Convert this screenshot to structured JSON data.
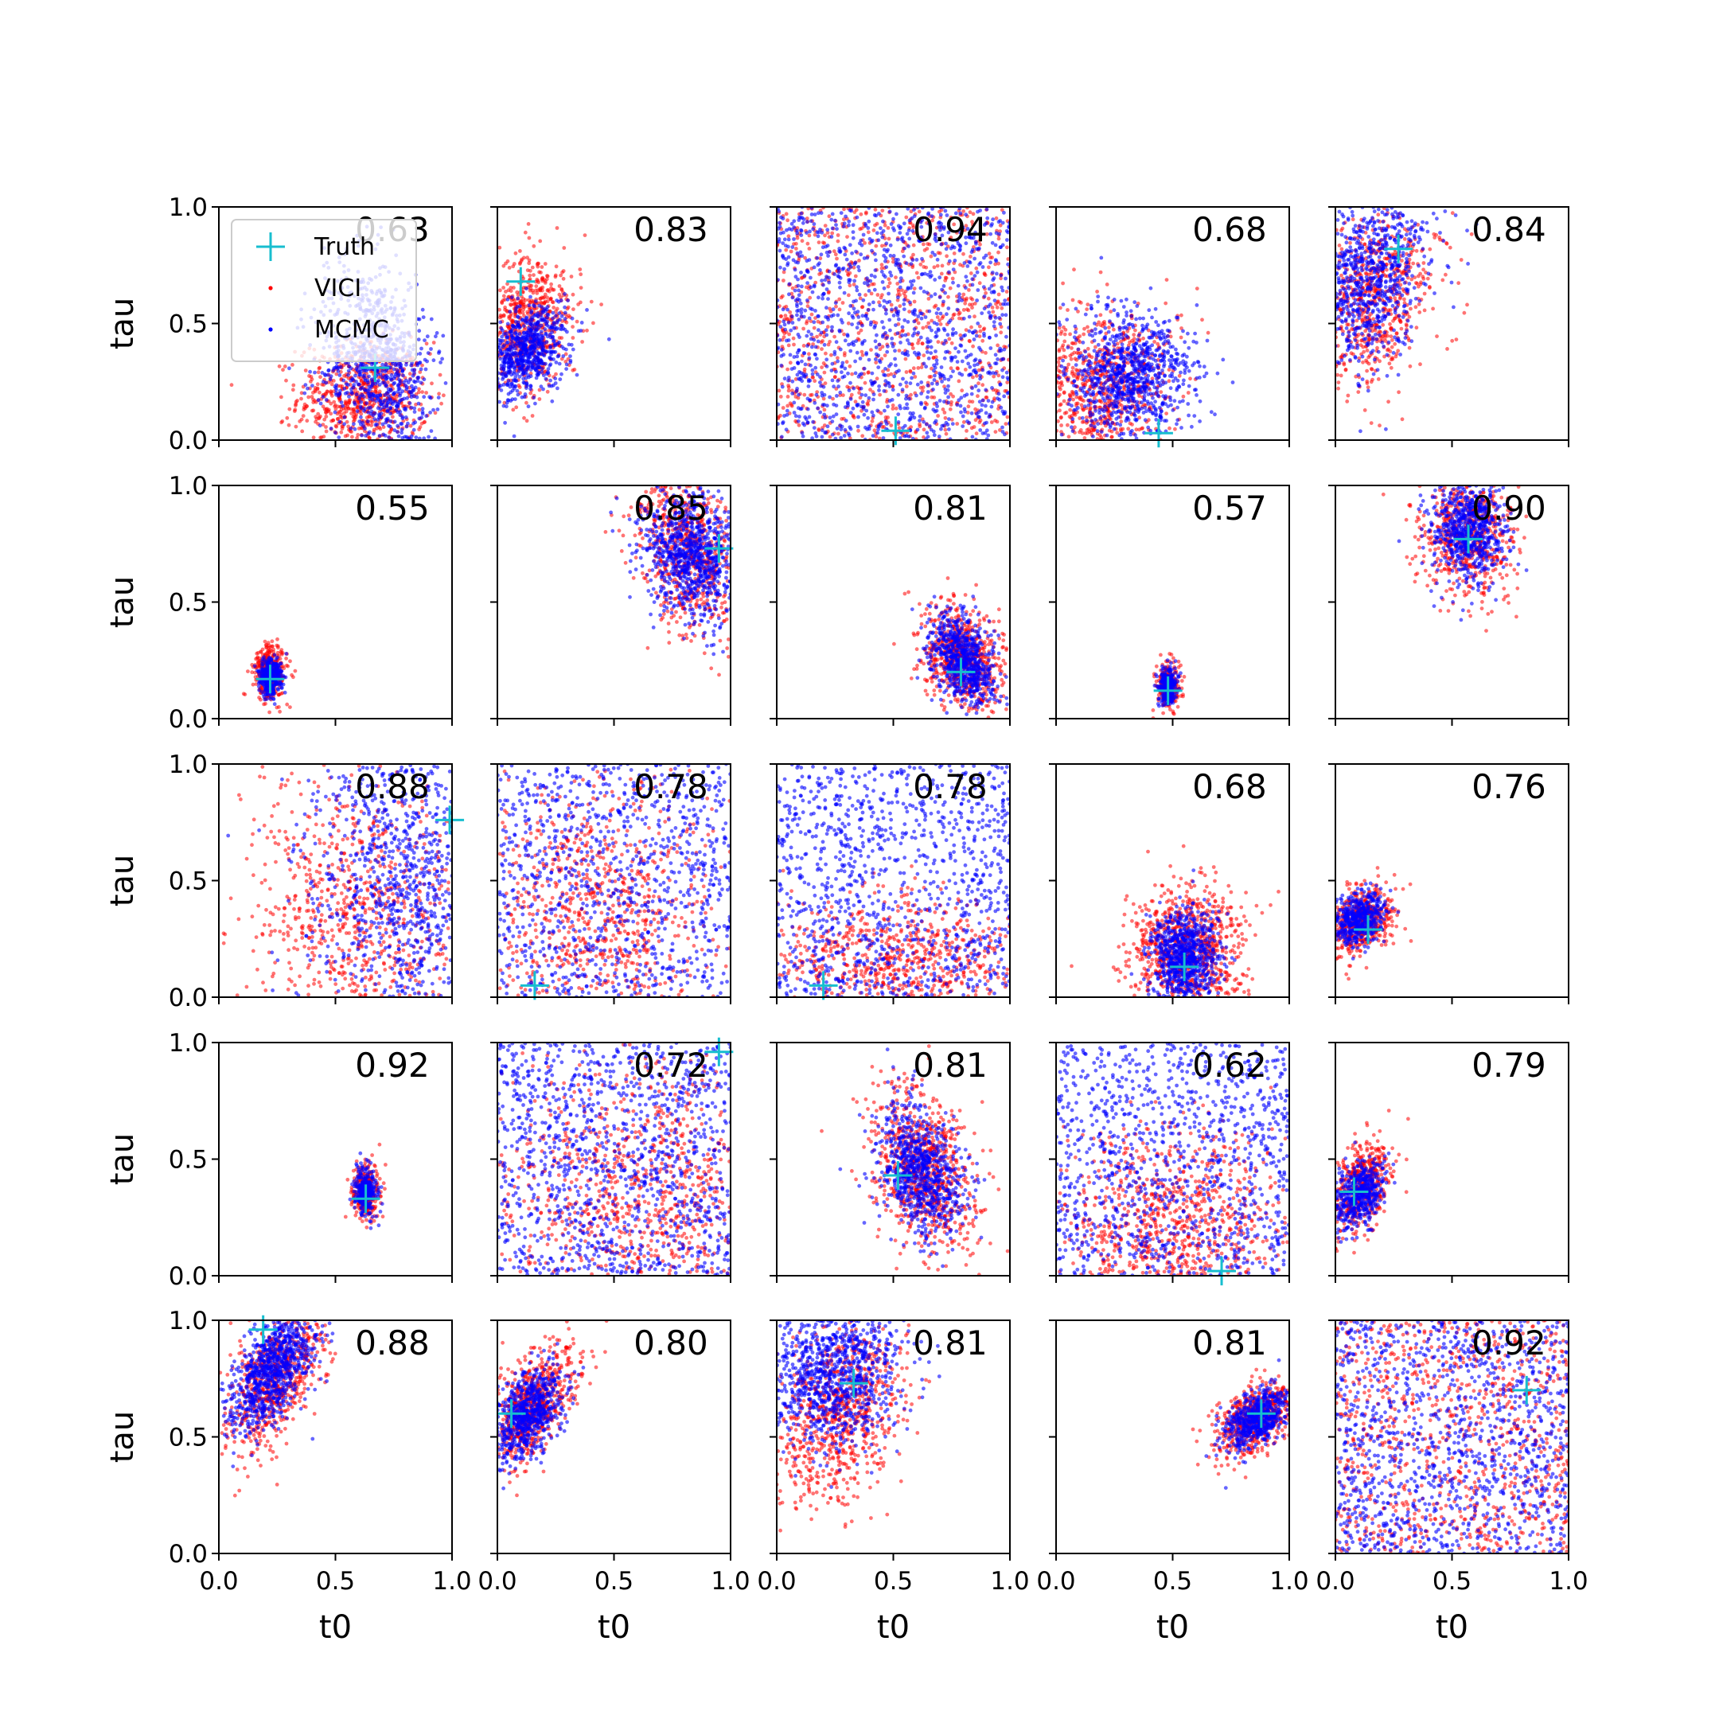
{
  "colors": {
    "vici": "#ff0000",
    "mcmc": "#0000ff",
    "truth": "#17becf",
    "axes": "#000000",
    "background": "#ffffff"
  },
  "legend": {
    "placement": "top-left of first panel",
    "entries": [
      {
        "label": "Truth",
        "marker": "plus",
        "color": "#17becf"
      },
      {
        "label": "VICI",
        "marker": "dot",
        "color": "#ff0000"
      },
      {
        "label": "MCMC",
        "marker": "dot",
        "color": "#0000ff"
      }
    ]
  },
  "chart_data": {
    "type": "scatter",
    "layout": "5x5 grid of scatter panels with shared axes",
    "xlabel": "t0",
    "ylabel": "tau",
    "xlim": [
      0,
      1
    ],
    "ylim": [
      0,
      1
    ],
    "xticks": [
      "0.0",
      "0.5",
      "1.0"
    ],
    "yticks": [
      "0.0",
      "0.5",
      "1.0"
    ],
    "grid": false,
    "series_names": [
      "Truth",
      "VICI",
      "MCMC"
    ],
    "panels": [
      {
        "row": 0,
        "col": 0,
        "score": "0.63",
        "truth": [
          0.67,
          0.31
        ],
        "mcmc": {
          "type": "blob",
          "cx": 0.68,
          "cy": 0.33,
          "sx": 0.12,
          "sy": 0.22,
          "rot": 0.2,
          "n": 900
        },
        "vici": {
          "type": "blob",
          "cx": 0.62,
          "cy": 0.18,
          "sx": 0.14,
          "sy": 0.12,
          "rot": 0,
          "n": 700
        }
      },
      {
        "row": 0,
        "col": 1,
        "score": "0.83",
        "truth": [
          0.1,
          0.68
        ],
        "mcmc": {
          "type": "blob",
          "cx": 0.12,
          "cy": 0.38,
          "sx": 0.08,
          "sy": 0.1,
          "rot": -0.5,
          "n": 700
        },
        "vici": {
          "type": "blob",
          "cx": 0.12,
          "cy": 0.5,
          "sx": 0.1,
          "sy": 0.15,
          "rot": -0.3,
          "n": 700
        }
      },
      {
        "row": 0,
        "col": 2,
        "score": "0.94",
        "truth": [
          0.51,
          0.04
        ],
        "mcmc": {
          "type": "uniform",
          "n": 1200
        },
        "vici": {
          "type": "uniform",
          "n": 900
        }
      },
      {
        "row": 0,
        "col": 3,
        "score": "0.68",
        "truth": [
          0.44,
          0.03
        ],
        "mcmc": {
          "type": "blob",
          "cx": 0.32,
          "cy": 0.28,
          "sx": 0.13,
          "sy": 0.14,
          "rot": -0.7,
          "n": 900
        },
        "vici": {
          "type": "blob",
          "cx": 0.18,
          "cy": 0.22,
          "sx": 0.15,
          "sy": 0.18,
          "rot": -0.6,
          "n": 800
        }
      },
      {
        "row": 0,
        "col": 4,
        "score": "0.84",
        "truth": [
          0.27,
          0.82
        ],
        "mcmc": {
          "type": "blob",
          "cx": 0.14,
          "cy": 0.7,
          "sx": 0.12,
          "sy": 0.2,
          "rot": -0.4,
          "n": 900
        },
        "vici": {
          "type": "blob",
          "cx": 0.16,
          "cy": 0.6,
          "sx": 0.12,
          "sy": 0.2,
          "rot": -0.4,
          "n": 700
        }
      },
      {
        "row": 1,
        "col": 0,
        "score": "0.55",
        "truth": [
          0.22,
          0.17
        ],
        "mcmc": {
          "type": "blob",
          "cx": 0.22,
          "cy": 0.18,
          "sx": 0.025,
          "sy": 0.04,
          "rot": 0,
          "n": 350
        },
        "vici": {
          "type": "blob",
          "cx": 0.22,
          "cy": 0.2,
          "sx": 0.035,
          "sy": 0.06,
          "rot": 0,
          "n": 350
        }
      },
      {
        "row": 1,
        "col": 1,
        "score": "0.85",
        "truth": [
          0.95,
          0.73
        ],
        "mcmc": {
          "type": "blob",
          "cx": 0.84,
          "cy": 0.7,
          "sx": 0.1,
          "sy": 0.14,
          "rot": 0.3,
          "n": 900
        },
        "vici": {
          "type": "blob",
          "cx": 0.82,
          "cy": 0.72,
          "sx": 0.1,
          "sy": 0.18,
          "rot": 0.3,
          "n": 700
        }
      },
      {
        "row": 1,
        "col": 2,
        "score": "0.81",
        "truth": [
          0.79,
          0.2
        ],
        "mcmc": {
          "type": "blob",
          "cx": 0.8,
          "cy": 0.25,
          "sx": 0.06,
          "sy": 0.1,
          "rot": 0.4,
          "n": 700
        },
        "vici": {
          "type": "blob",
          "cx": 0.8,
          "cy": 0.26,
          "sx": 0.08,
          "sy": 0.12,
          "rot": 0.4,
          "n": 700
        }
      },
      {
        "row": 1,
        "col": 3,
        "score": "0.57",
        "truth": [
          0.48,
          0.12
        ],
        "mcmc": {
          "type": "blob",
          "cx": 0.48,
          "cy": 0.14,
          "sx": 0.02,
          "sy": 0.04,
          "rot": 0,
          "n": 250
        },
        "vici": {
          "type": "blob",
          "cx": 0.48,
          "cy": 0.14,
          "sx": 0.025,
          "sy": 0.05,
          "rot": 0,
          "n": 250
        }
      },
      {
        "row": 1,
        "col": 4,
        "score": "0.90",
        "truth": [
          0.57,
          0.77
        ],
        "mcmc": {
          "type": "blob",
          "cx": 0.57,
          "cy": 0.8,
          "sx": 0.08,
          "sy": 0.11,
          "rot": 0,
          "n": 700
        },
        "vici": {
          "type": "blob",
          "cx": 0.57,
          "cy": 0.78,
          "sx": 0.1,
          "sy": 0.13,
          "rot": 0,
          "n": 600
        }
      },
      {
        "row": 2,
        "col": 0,
        "score": "0.88",
        "truth": [
          0.99,
          0.76
        ],
        "mcmc": {
          "type": "blob",
          "cx": 0.82,
          "cy": 0.55,
          "sx": 0.22,
          "sy": 0.35,
          "rot": 0,
          "n": 1200
        },
        "vici": {
          "type": "blob",
          "cx": 0.6,
          "cy": 0.35,
          "sx": 0.25,
          "sy": 0.3,
          "rot": 0,
          "n": 800
        }
      },
      {
        "row": 2,
        "col": 1,
        "score": "0.78",
        "truth": [
          0.16,
          0.05
        ],
        "mcmc": {
          "type": "uniform",
          "n": 1000
        },
        "vici": {
          "type": "blob",
          "cx": 0.45,
          "cy": 0.35,
          "sx": 0.28,
          "sy": 0.3,
          "rot": 0,
          "n": 900
        }
      },
      {
        "row": 2,
        "col": 2,
        "score": "0.78",
        "truth": [
          0.2,
          0.05
        ],
        "mcmc": {
          "type": "uniform",
          "n": 1100
        },
        "vici": {
          "type": "blob",
          "cx": 0.5,
          "cy": 0.15,
          "sx": 0.3,
          "sy": 0.15,
          "rot": 0,
          "n": 800
        }
      },
      {
        "row": 2,
        "col": 3,
        "score": "0.68",
        "truth": [
          0.55,
          0.13
        ],
        "mcmc": {
          "type": "blob",
          "cx": 0.55,
          "cy": 0.17,
          "sx": 0.07,
          "sy": 0.1,
          "rot": 0,
          "n": 800
        },
        "vici": {
          "type": "blob",
          "cx": 0.56,
          "cy": 0.18,
          "sx": 0.12,
          "sy": 0.15,
          "rot": 0,
          "n": 900
        }
      },
      {
        "row": 2,
        "col": 4,
        "score": "0.76",
        "truth": [
          0.14,
          0.29
        ],
        "mcmc": {
          "type": "blob",
          "cx": 0.1,
          "cy": 0.34,
          "sx": 0.05,
          "sy": 0.06,
          "rot": -0.7,
          "n": 500
        },
        "vici": {
          "type": "blob",
          "cx": 0.11,
          "cy": 0.33,
          "sx": 0.06,
          "sy": 0.08,
          "rot": -0.7,
          "n": 500
        }
      },
      {
        "row": 3,
        "col": 0,
        "score": "0.92",
        "truth": [
          0.63,
          0.33
        ],
        "mcmc": {
          "type": "blob",
          "cx": 0.63,
          "cy": 0.36,
          "sx": 0.025,
          "sy": 0.05,
          "rot": 0,
          "n": 300
        },
        "vici": {
          "type": "blob",
          "cx": 0.63,
          "cy": 0.36,
          "sx": 0.03,
          "sy": 0.06,
          "rot": 0,
          "n": 300
        }
      },
      {
        "row": 3,
        "col": 1,
        "score": "0.72",
        "truth": [
          0.95,
          0.96
        ],
        "mcmc": {
          "type": "uniform",
          "n": 1200
        },
        "vici": {
          "type": "blob",
          "cx": 0.6,
          "cy": 0.35,
          "sx": 0.3,
          "sy": 0.3,
          "rot": 0,
          "n": 1000
        }
      },
      {
        "row": 3,
        "col": 2,
        "score": "0.81",
        "truth": [
          0.52,
          0.43
        ],
        "mcmc": {
          "type": "blob",
          "cx": 0.62,
          "cy": 0.45,
          "sx": 0.08,
          "sy": 0.15,
          "rot": 0.3,
          "n": 800
        },
        "vici": {
          "type": "blob",
          "cx": 0.63,
          "cy": 0.45,
          "sx": 0.1,
          "sy": 0.18,
          "rot": 0.3,
          "n": 800
        }
      },
      {
        "row": 3,
        "col": 3,
        "score": "0.62",
        "truth": [
          0.71,
          0.02
        ],
        "mcmc": {
          "type": "uniform",
          "n": 1100
        },
        "vici": {
          "type": "blob",
          "cx": 0.5,
          "cy": 0.2,
          "sx": 0.25,
          "sy": 0.2,
          "rot": 0,
          "n": 900
        }
      },
      {
        "row": 3,
        "col": 4,
        "score": "0.79",
        "truth": [
          0.08,
          0.36
        ],
        "mcmc": {
          "type": "blob",
          "cx": 0.1,
          "cy": 0.35,
          "sx": 0.05,
          "sy": 0.08,
          "rot": -0.4,
          "n": 500
        },
        "vici": {
          "type": "blob",
          "cx": 0.11,
          "cy": 0.38,
          "sx": 0.06,
          "sy": 0.11,
          "rot": -0.4,
          "n": 500
        }
      },
      {
        "row": 4,
        "col": 0,
        "score": "0.88",
        "truth": [
          0.19,
          0.96
        ],
        "mcmc": {
          "type": "blob",
          "cx": 0.24,
          "cy": 0.8,
          "sx": 0.07,
          "sy": 0.15,
          "rot": -0.5,
          "n": 900
        },
        "vici": {
          "type": "blob",
          "cx": 0.24,
          "cy": 0.75,
          "sx": 0.08,
          "sy": 0.17,
          "rot": -0.5,
          "n": 700
        }
      },
      {
        "row": 4,
        "col": 1,
        "score": "0.80",
        "truth": [
          0.06,
          0.6
        ],
        "mcmc": {
          "type": "blob",
          "cx": 0.13,
          "cy": 0.6,
          "sx": 0.06,
          "sy": 0.11,
          "rot": -0.5,
          "n": 700
        },
        "vici": {
          "type": "blob",
          "cx": 0.14,
          "cy": 0.62,
          "sx": 0.07,
          "sy": 0.14,
          "rot": -0.5,
          "n": 700
        }
      },
      {
        "row": 4,
        "col": 2,
        "score": "0.81",
        "truth": [
          0.33,
          0.73
        ],
        "mcmc": {
          "type": "blob",
          "cx": 0.25,
          "cy": 0.78,
          "sx": 0.14,
          "sy": 0.16,
          "rot": -0.5,
          "n": 1000
        },
        "vici": {
          "type": "blob",
          "cx": 0.28,
          "cy": 0.62,
          "sx": 0.12,
          "sy": 0.2,
          "rot": -0.3,
          "n": 800
        }
      },
      {
        "row": 4,
        "col": 3,
        "score": "0.81",
        "truth": [
          0.88,
          0.6
        ],
        "mcmc": {
          "type": "blob",
          "cx": 0.86,
          "cy": 0.58,
          "sx": 0.05,
          "sy": 0.08,
          "rot": -0.9,
          "n": 600
        },
        "vici": {
          "type": "blob",
          "cx": 0.86,
          "cy": 0.58,
          "sx": 0.06,
          "sy": 0.1,
          "rot": -0.9,
          "n": 600
        }
      },
      {
        "row": 4,
        "col": 4,
        "score": "0.92",
        "truth": [
          0.82,
          0.7
        ],
        "mcmc": {
          "type": "uniform",
          "n": 1200
        },
        "vici": {
          "type": "uniform",
          "n": 900
        }
      }
    ]
  }
}
